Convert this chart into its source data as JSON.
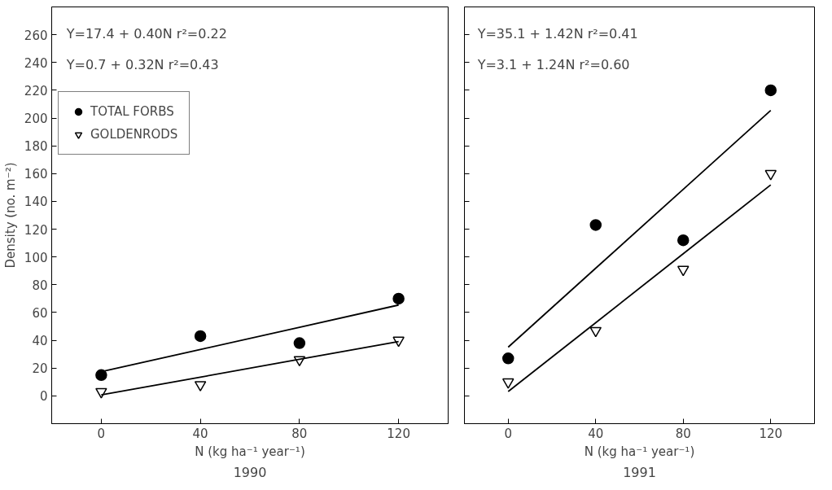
{
  "chart_data": [
    {
      "type": "scatter",
      "xlabel": "N (kg ha⁻¹ year⁻¹)",
      "ylabel": "Density (no. m⁻²)",
      "xlim": [
        -20,
        140
      ],
      "ylim": [
        -20,
        280
      ],
      "xticks": [
        0,
        40,
        80,
        120
      ],
      "yticks": [
        0,
        20,
        40,
        60,
        80,
        100,
        120,
        140,
        160,
        180,
        200,
        220,
        240,
        260
      ],
      "grid": false,
      "legend": "left",
      "annotations": [
        "Y=17.4 + 0.40N r²=0.22",
        "Y=0.7 + 0.32N r²=0.43",
        "1990"
      ],
      "x": [
        0,
        40,
        80,
        120
      ],
      "series": [
        {
          "name": "TOTAL FORBS",
          "color": "#000000",
          "marker": "circle",
          "values": [
            15,
            43,
            38,
            70
          ]
        },
        {
          "name": "GOLDENRODS",
          "color": "#000000",
          "marker": "triangle",
          "values": [
            3,
            8,
            26,
            40
          ]
        },
        {
          "type": "line",
          "color": "#000000",
          "values": [
            17.4,
            33.4,
            49.4,
            65.4
          ]
        },
        {
          "type": "line",
          "color": "#000000",
          "values": [
            0.7,
            13.5,
            26.3,
            39.1
          ]
        }
      ]
    },
    {
      "type": "scatter",
      "xlabel": "N (kg ha⁻¹ year⁻¹)",
      "xlim": [
        -20,
        140
      ],
      "ylim": [
        -20,
        280
      ],
      "xticks": [
        0,
        40,
        80,
        120
      ],
      "yticks": [
        0,
        20,
        40,
        60,
        80,
        100,
        120,
        140,
        160,
        180,
        200,
        220,
        240,
        260
      ],
      "tick_labels": "x",
      "grid": false,
      "annotations": [
        "Y=35.1 + 1.42N r²=0.41",
        "Y=3.1 + 1.24N r²=0.60",
        "1991"
      ],
      "x": [
        0,
        40,
        80,
        120
      ],
      "series": [
        {
          "color": "#000000",
          "marker": "circle",
          "values": [
            27,
            123,
            112,
            220
          ]
        },
        {
          "color": "#000000",
          "marker": "triangle",
          "values": [
            10,
            47,
            91,
            160
          ]
        },
        {
          "type": "line",
          "color": "#000000",
          "values": [
            35.1,
            91.9,
            148.7,
            205.5
          ]
        },
        {
          "type": "line",
          "color": "#000000",
          "values": [
            3.1,
            52.7,
            102.3,
            151.9
          ]
        }
      ]
    }
  ]
}
